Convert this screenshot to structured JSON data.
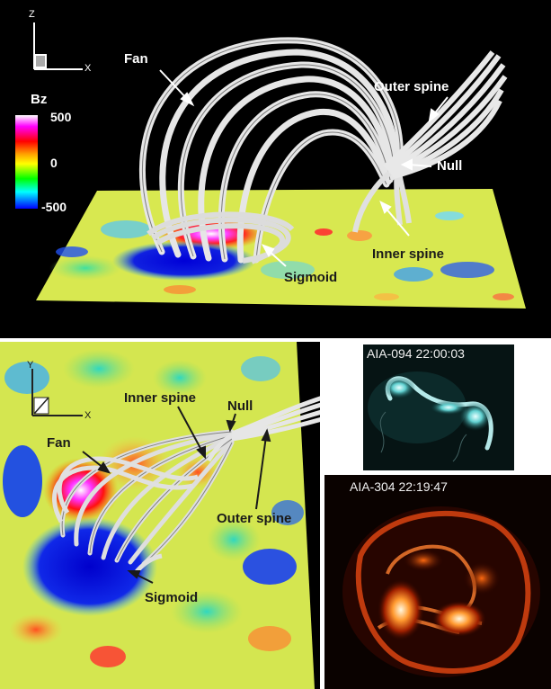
{
  "top_panel": {
    "axis_labels": {
      "z": "Z",
      "x": "X"
    },
    "colorbar": {
      "title": "Bz",
      "ticks": [
        "500",
        "0",
        "-500"
      ],
      "colors": [
        "#ffffff",
        "#ff00ff",
        "#ff0000",
        "#ffa500",
        "#ffff00",
        "#00ff00",
        "#00ffff",
        "#0000ff"
      ]
    },
    "labels": {
      "fan": "Fan",
      "outer_spine": "Outer spine",
      "null": "Null",
      "inner_spine": "Inner spine",
      "sigmoid": "Sigmoid"
    }
  },
  "bottom_left_panel": {
    "axis_labels": {
      "y": "Y",
      "x": "X"
    },
    "labels": {
      "inner_spine": "Inner spine",
      "null": "Null",
      "fan": "Fan",
      "outer_spine": "Outer spine",
      "sigmoid": "Sigmoid"
    }
  },
  "aia_094": {
    "title": "AIA-094 22:00:03"
  },
  "aia_304": {
    "title": "AIA-304 22:19:47"
  }
}
